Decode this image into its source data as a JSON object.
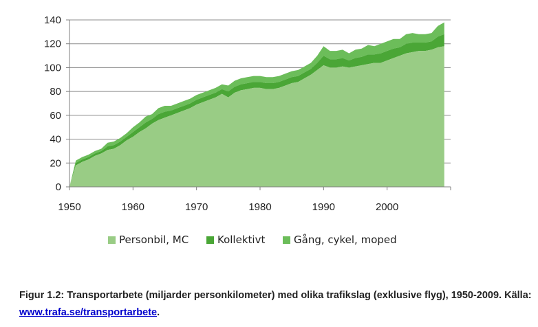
{
  "chart_data": {
    "type": "area",
    "stacked": true,
    "x": [
      1950,
      1951,
      1952,
      1953,
      1954,
      1955,
      1956,
      1957,
      1958,
      1959,
      1960,
      1961,
      1962,
      1963,
      1964,
      1965,
      1966,
      1967,
      1968,
      1969,
      1970,
      1971,
      1972,
      1973,
      1974,
      1975,
      1976,
      1977,
      1978,
      1979,
      1980,
      1981,
      1982,
      1983,
      1984,
      1985,
      1986,
      1987,
      1988,
      1989,
      1990,
      1991,
      1992,
      1993,
      1994,
      1995,
      1996,
      1997,
      1998,
      1999,
      2000,
      2001,
      2002,
      2003,
      2004,
      2005,
      2006,
      2007,
      2008,
      2009
    ],
    "series": [
      {
        "name": "Personbil, MC",
        "color": "#99cc85",
        "values": [
          0,
          7,
          9,
          11,
          13,
          15,
          18,
          19,
          22,
          26,
          30,
          35,
          38,
          41,
          44,
          46,
          47,
          49,
          51,
          53,
          55,
          57,
          59,
          61,
          63,
          61,
          65,
          67,
          69,
          70,
          70,
          68,
          68,
          69,
          71,
          73,
          74,
          77,
          81,
          85,
          89,
          87,
          87,
          88,
          86,
          87,
          88,
          88,
          89,
          89,
          91,
          93,
          94,
          96,
          97,
          98,
          98,
          98,
          101,
          100
        ],
        "top": [
          0,
          18,
          21,
          23,
          26,
          28,
          31,
          32,
          35,
          39,
          42,
          46,
          49,
          53,
          56,
          58,
          60,
          62,
          64,
          66,
          69,
          71,
          73,
          75,
          78,
          75,
          79,
          81,
          82,
          83,
          83,
          82,
          82,
          83,
          85,
          87,
          88,
          91,
          94,
          98,
          102,
          100,
          100,
          101,
          100,
          101,
          102,
          103,
          104,
          104,
          106,
          108,
          110,
          112,
          113,
          114,
          114,
          115,
          117,
          118
        ]
      },
      {
        "name": "Kollektivt",
        "color": "#4aa636",
        "values": [
          0,
          11,
          12,
          12,
          13,
          13,
          13,
          13,
          13,
          13,
          12,
          11,
          11,
          12,
          12,
          12,
          13,
          13,
          13,
          13,
          14,
          14,
          14,
          14,
          15,
          14,
          14,
          14,
          13,
          13,
          13,
          14,
          14,
          14,
          14,
          14,
          14,
          14,
          13,
          13,
          13,
          13,
          13,
          13,
          14,
          14,
          14,
          15,
          15,
          15,
          15,
          15,
          16,
          16,
          16,
          16,
          16,
          17,
          16,
          18
        ],
        "top": [
          0,
          20,
          23,
          25,
          28,
          30,
          34,
          35,
          38,
          42,
          46,
          50,
          54,
          57,
          61,
          63,
          64,
          66,
          68,
          70,
          73,
          75,
          77,
          79,
          82,
          80,
          84,
          86,
          87,
          88,
          88,
          87,
          87,
          88,
          90,
          92,
          93,
          96,
          99,
          104,
          110,
          107,
          107,
          108,
          106,
          108,
          109,
          111,
          111,
          112,
          114,
          116,
          117,
          120,
          121,
          121,
          121,
          122,
          126,
          128
        ]
      },
      {
        "name": "Gång, cykel, moped",
        "color": "#6cbd5a",
        "values": [
          0,
          2,
          2,
          2,
          2,
          2,
          3,
          3,
          3,
          3,
          4,
          4,
          5,
          4,
          5,
          5,
          4,
          4,
          4,
          4,
          4,
          4,
          4,
          4,
          4,
          5,
          5,
          5,
          5,
          5,
          5,
          5,
          5,
          5,
          5,
          5,
          5,
          5,
          5,
          6,
          8,
          7,
          7,
          7,
          6,
          7,
          7,
          8,
          7,
          8,
          8,
          8,
          7,
          8,
          8,
          7,
          7,
          7,
          9,
          10
        ]
      }
    ],
    "xlabel": "",
    "ylabel": "",
    "xlim": [
      1950,
      2010
    ],
    "ylim": [
      0,
      140
    ],
    "xticks": [
      1950,
      1960,
      1970,
      1980,
      1990,
      2000
    ],
    "yticks": [
      0,
      20,
      40,
      60,
      80,
      100,
      120,
      140
    ],
    "grid": true,
    "legend": "bottom"
  },
  "caption": {
    "text": "Figur 1.2: Transportarbete (miljarder personkilometer) med olika trafikslag (exklusive flyg), 1950-2009. Källa: ",
    "link": "www.trafa.se/transportarbete",
    "end": "."
  }
}
